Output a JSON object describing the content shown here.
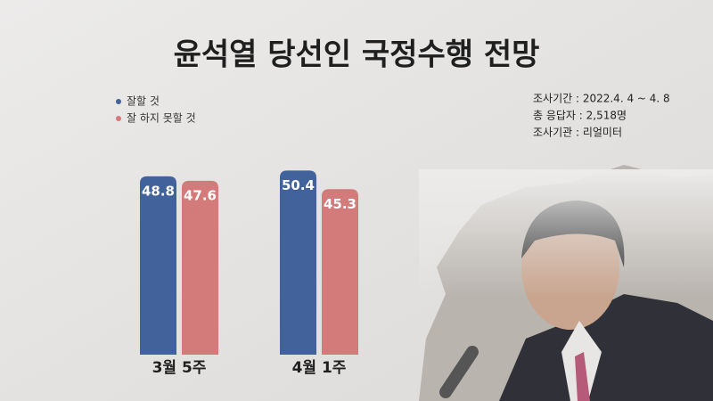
{
  "chart_data": {
    "type": "bar",
    "title": "윤석열 당선인 국정수행 전망",
    "categories": [
      "3월 5주",
      "4월 1주"
    ],
    "series": [
      {
        "name": "잘할 것",
        "color": "#41629b",
        "values": [
          48.8,
          50.4
        ]
      },
      {
        "name": "잘 하지 못할 것",
        "color": "#d27b7a",
        "values": [
          47.6,
          45.3
        ]
      }
    ],
    "notes": [
      "조사기간 : 2022.4. 4 ~ 4. 8",
      "총 응답자 : 2,518명",
      "조사기관 : 리얼미터"
    ]
  }
}
